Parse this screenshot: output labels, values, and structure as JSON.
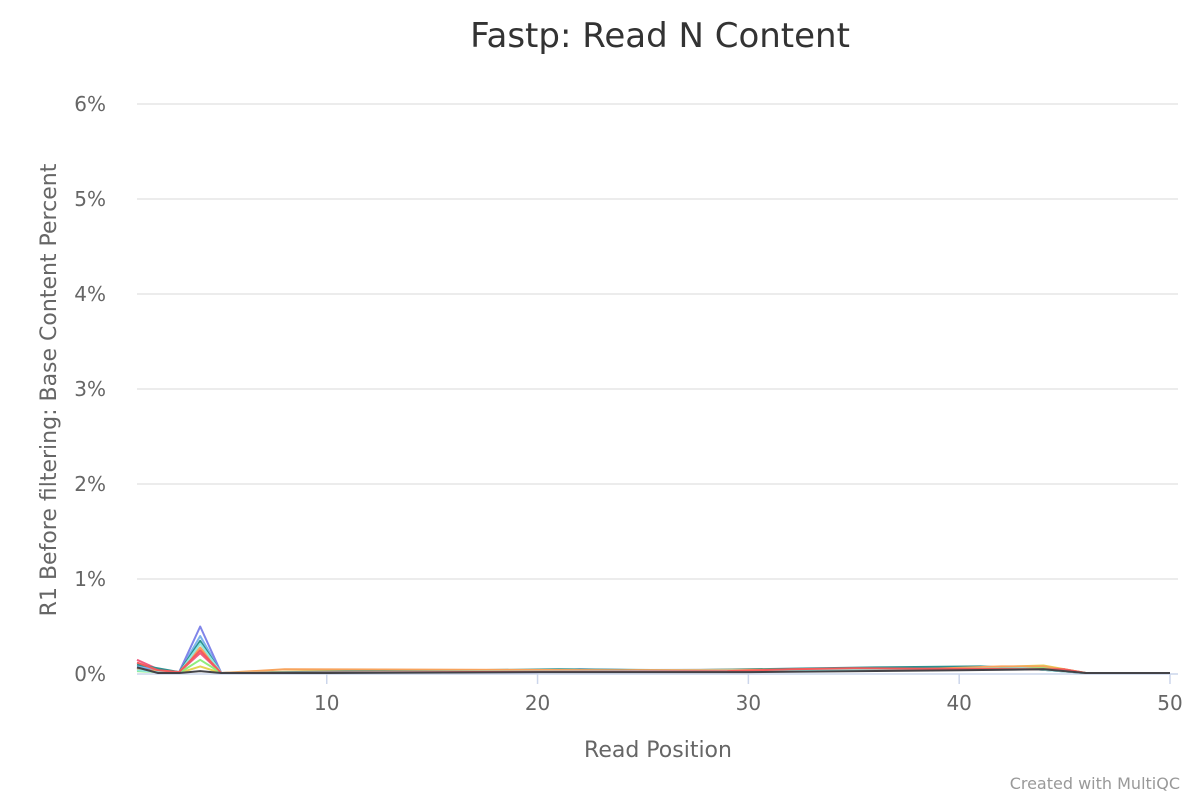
{
  "chart_data": {
    "type": "line",
    "title": "Fastp: Read N Content",
    "xlabel": "Read Position",
    "ylabel": "R1 Before filtering: Base Content Percent",
    "credit": "Created with MultiQC",
    "xlim": [
      1,
      50
    ],
    "ylim": [
      0,
      6
    ],
    "x_ticks": [
      10,
      20,
      30,
      40,
      50
    ],
    "y_ticks": [
      0,
      1,
      2,
      3,
      4,
      5,
      6
    ],
    "y_tick_labels": [
      "0%",
      "1%",
      "2%",
      "3%",
      "4%",
      "5%",
      "6%"
    ],
    "grid": true,
    "legend": "none",
    "series": [
      {
        "color": "#7cb5ec",
        "x": [
          1,
          2,
          3,
          4,
          5,
          8,
          22,
          36,
          41,
          44,
          45,
          46,
          50
        ],
        "y": [
          0.08,
          0.04,
          0.02,
          0.4,
          0.01,
          0.02,
          0.04,
          0.05,
          0.06,
          0.07,
          0.04,
          0.01,
          0.01
        ]
      },
      {
        "color": "#8085e9",
        "x": [
          1,
          2,
          3,
          4,
          5,
          8,
          20,
          21,
          22,
          25,
          40,
          43,
          46,
          50
        ],
        "y": [
          0.06,
          0.03,
          0.02,
          0.5,
          0.01,
          0.02,
          0.02,
          0.04,
          0.05,
          0.04,
          0.05,
          0.06,
          0.01,
          0.01
        ]
      },
      {
        "color": "#f15c80",
        "x": [
          1,
          2,
          3,
          4,
          5,
          9,
          29,
          30,
          32,
          35,
          45,
          46,
          50
        ],
        "y": [
          0.15,
          0.05,
          0.02,
          0.22,
          0.01,
          0.02,
          0.03,
          0.03,
          0.04,
          0.05,
          0.05,
          0.01,
          0.01
        ]
      },
      {
        "color": "#e4d354",
        "x": [
          1,
          2,
          3,
          4,
          5,
          10,
          15,
          21,
          37,
          44,
          46,
          50
        ],
        "y": [
          0.04,
          0.02,
          0.01,
          0.08,
          0.01,
          0.03,
          0.02,
          0.03,
          0.04,
          0.09,
          0.01,
          0.01
        ]
      },
      {
        "color": "#2b908f",
        "x": [
          1,
          2,
          3,
          4,
          5,
          8,
          21,
          27,
          36,
          41,
          43,
          46,
          50
        ],
        "y": [
          0.1,
          0.06,
          0.02,
          0.35,
          0.01,
          0.02,
          0.05,
          0.04,
          0.07,
          0.08,
          0.06,
          0.01,
          0.01
        ]
      },
      {
        "color": "#f7a35c",
        "x": [
          1,
          2,
          3,
          4,
          5,
          8,
          24,
          38,
          42,
          44,
          46,
          50
        ],
        "y": [
          0.05,
          0.03,
          0.02,
          0.28,
          0.01,
          0.05,
          0.04,
          0.05,
          0.08,
          0.08,
          0.01,
          0.01
        ]
      },
      {
        "color": "#90ed7d",
        "x": [
          1,
          2,
          3,
          4,
          5,
          16,
          26,
          33,
          44,
          46,
          50
        ],
        "y": [
          0.03,
          0.02,
          0.01,
          0.15,
          0.01,
          0.02,
          0.03,
          0.03,
          0.06,
          0.01,
          0.01
        ]
      },
      {
        "color": "#91e8e1",
        "x": [
          1,
          2,
          3,
          4,
          5,
          12,
          23,
          34,
          43,
          46,
          50
        ],
        "y": [
          0.04,
          0.02,
          0.01,
          0.32,
          0.01,
          0.02,
          0.03,
          0.04,
          0.06,
          0.01,
          0.01
        ]
      },
      {
        "color": "#f45b5b",
        "x": [
          1,
          2,
          3,
          4,
          5,
          29,
          32,
          35,
          45,
          46,
          50
        ],
        "y": [
          0.12,
          0.04,
          0.02,
          0.25,
          0.01,
          0.03,
          0.05,
          0.06,
          0.05,
          0.01,
          0.01
        ]
      },
      {
        "color": "#434348",
        "x": [
          1,
          2,
          3,
          4,
          5,
          10,
          20,
          30,
          40,
          44,
          46,
          50
        ],
        "y": [
          0.07,
          0.01,
          0.01,
          0.03,
          0.01,
          0.01,
          0.02,
          0.02,
          0.04,
          0.05,
          0.01,
          0.01
        ]
      }
    ]
  }
}
